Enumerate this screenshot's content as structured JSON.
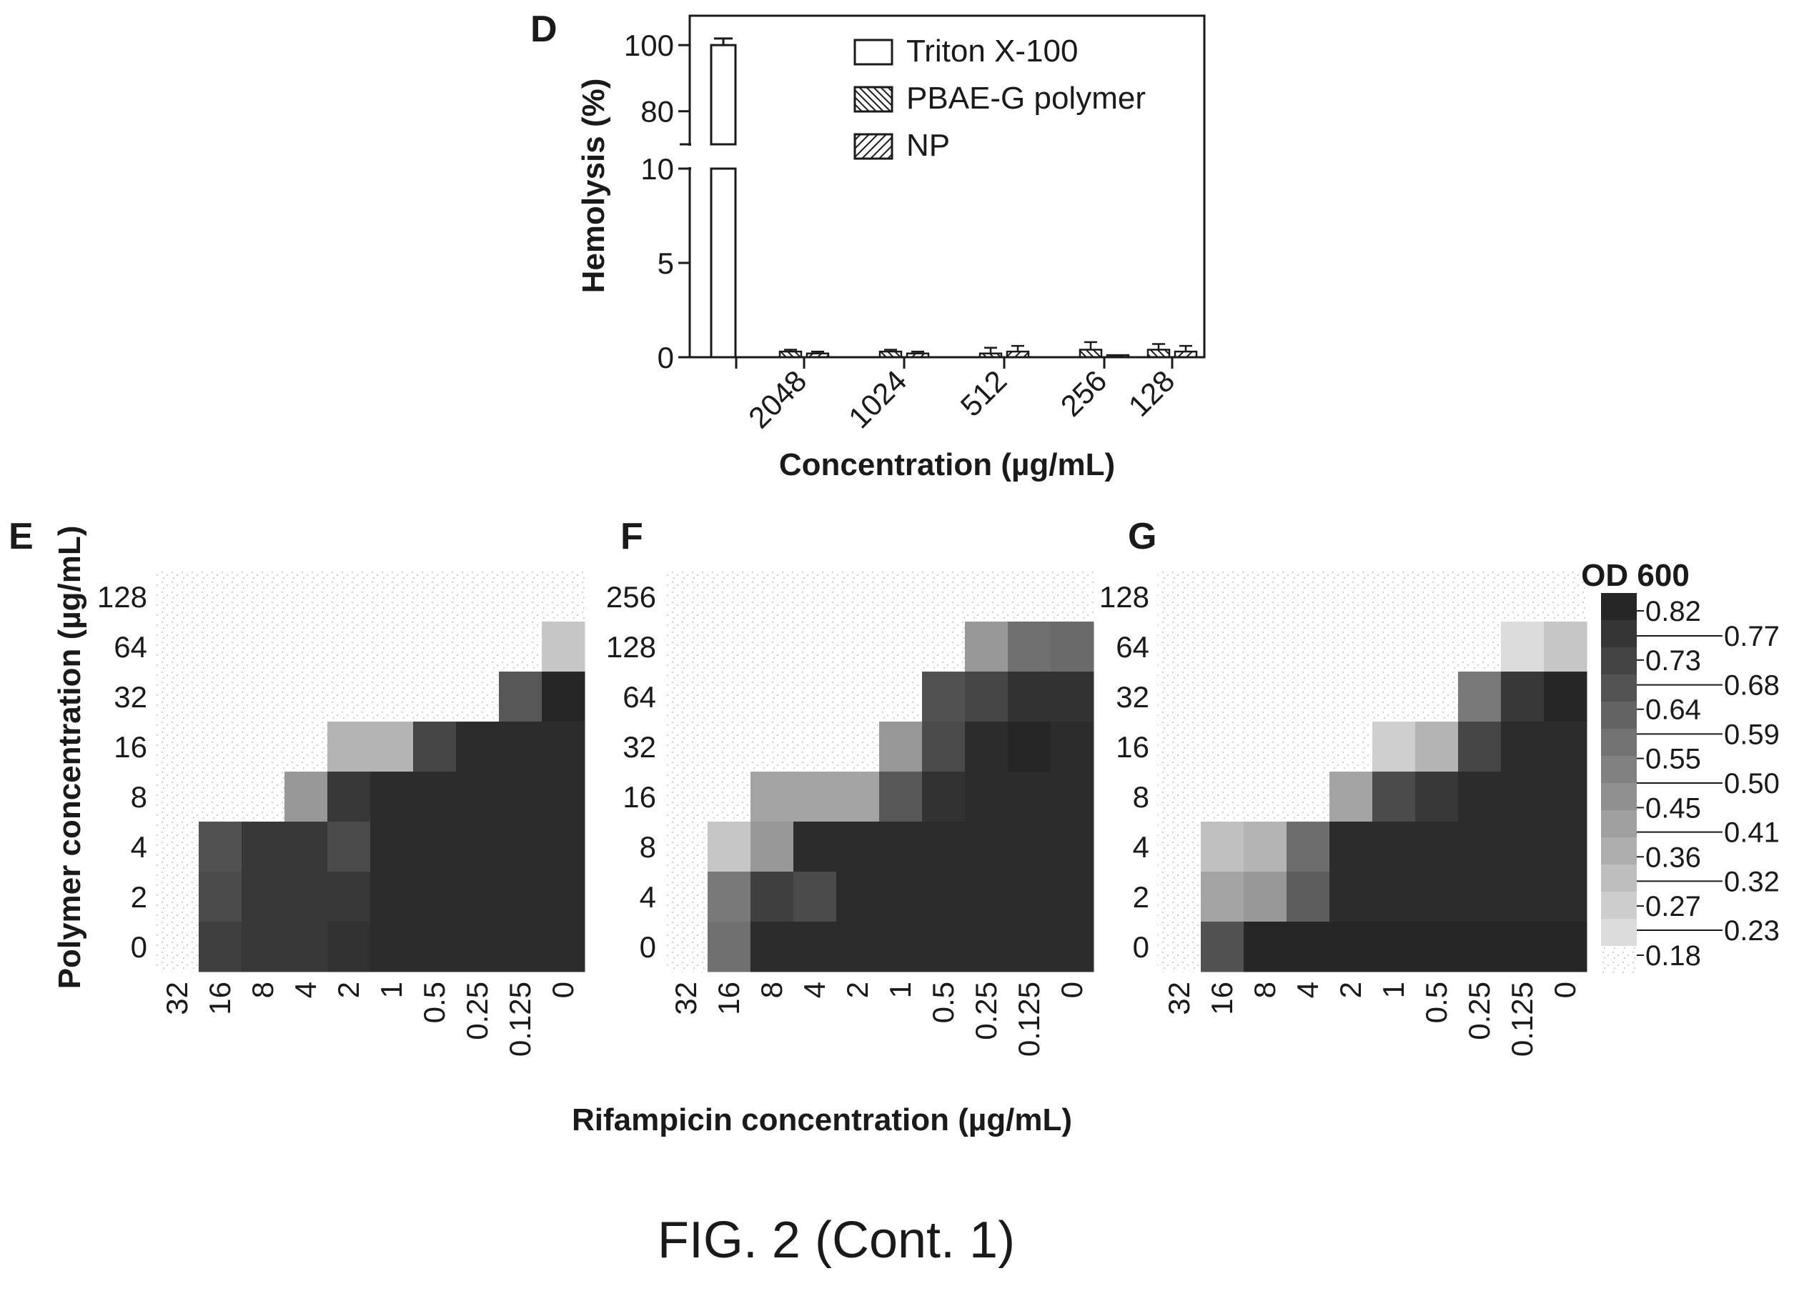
{
  "figure_caption": "FIG. 2 (Cont. 1)",
  "chart_data": [
    {
      "panel": "D",
      "type": "bar",
      "ylabel": "Hemolysis (%)",
      "xlabel": "Concentration (µg/mL)",
      "y_axis": {
        "broken": true,
        "lower_range": [
          0,
          10
        ],
        "lower_ticks": [
          0,
          5,
          10
        ],
        "upper_range": [
          70,
          105
        ],
        "upper_ticks": [
          80,
          100
        ]
      },
      "categories": [
        "",
        "2048",
        "1024",
        "512",
        "256",
        "128"
      ],
      "series": [
        {
          "name": "Triton X-100",
          "pattern": "none",
          "values": [
            100,
            null,
            null,
            null,
            null,
            null
          ],
          "errors": [
            2,
            null,
            null,
            null,
            null,
            null
          ]
        },
        {
          "name": "PBAE-G polymer",
          "pattern": "hatch-back",
          "values": [
            null,
            0.3,
            0.3,
            0.2,
            0.4,
            0.4
          ],
          "errors": [
            null,
            0.1,
            0.1,
            0.3,
            0.4,
            0.3
          ]
        },
        {
          "name": "NP",
          "pattern": "hatch-forward",
          "values": [
            null,
            0.2,
            0.2,
            0.3,
            0.05,
            0.3
          ],
          "errors": [
            null,
            0.1,
            0.1,
            0.3,
            0.05,
            0.3
          ]
        }
      ],
      "legend_position": "top-right",
      "grid": false
    },
    {
      "panel": "E",
      "type": "heatmap",
      "ylabel": "Polymer concentration (µg/mL)",
      "xlabel": "Rifampicin concentration (µg/mL)",
      "x_categories": [
        "32",
        "16",
        "8",
        "4",
        "2",
        "1",
        "0.5",
        "0.25",
        "0.125",
        "0"
      ],
      "y_categories": [
        "128",
        "64",
        "32",
        "16",
        "8",
        "4",
        "2",
        "0"
      ],
      "values": [
        [
          0.18,
          0.18,
          0.18,
          0.18,
          0.18,
          0.18,
          0.18,
          0.18,
          0.18,
          0.18
        ],
        [
          0.18,
          0.18,
          0.18,
          0.18,
          0.18,
          0.18,
          0.18,
          0.18,
          0.18,
          0.3
        ],
        [
          0.18,
          0.18,
          0.18,
          0.18,
          0.18,
          0.18,
          0.18,
          0.18,
          0.66,
          0.82
        ],
        [
          0.18,
          0.18,
          0.18,
          0.18,
          0.36,
          0.36,
          0.72,
          0.8,
          0.8,
          0.8
        ],
        [
          0.18,
          0.18,
          0.18,
          0.45,
          0.76,
          0.8,
          0.8,
          0.8,
          0.8,
          0.8
        ],
        [
          0.18,
          0.68,
          0.76,
          0.76,
          0.7,
          0.8,
          0.8,
          0.8,
          0.8,
          0.8
        ],
        [
          0.18,
          0.7,
          0.76,
          0.76,
          0.76,
          0.8,
          0.8,
          0.8,
          0.8,
          0.8
        ],
        [
          0.18,
          0.74,
          0.76,
          0.76,
          0.78,
          0.8,
          0.8,
          0.8,
          0.8,
          0.8
        ]
      ]
    },
    {
      "panel": "F",
      "type": "heatmap",
      "ylabel": "",
      "xlabel": "Rifampicin concentration (µg/mL)",
      "x_categories": [
        "32",
        "16",
        "8",
        "4",
        "2",
        "1",
        "0.5",
        "0.25",
        "0.125",
        "0"
      ],
      "y_categories": [
        "256",
        "128",
        "64",
        "32",
        "16",
        "8",
        "4",
        "0"
      ],
      "values": [
        [
          0.18,
          0.18,
          0.18,
          0.18,
          0.18,
          0.18,
          0.18,
          0.18,
          0.18,
          0.18
        ],
        [
          0.18,
          0.18,
          0.18,
          0.18,
          0.18,
          0.18,
          0.18,
          0.45,
          0.58,
          0.6
        ],
        [
          0.18,
          0.18,
          0.18,
          0.18,
          0.18,
          0.18,
          0.68,
          0.72,
          0.78,
          0.78
        ],
        [
          0.18,
          0.18,
          0.18,
          0.18,
          0.18,
          0.45,
          0.7,
          0.8,
          0.82,
          0.8
        ],
        [
          0.18,
          0.18,
          0.41,
          0.41,
          0.41,
          0.66,
          0.78,
          0.8,
          0.8,
          0.8
        ],
        [
          0.18,
          0.3,
          0.45,
          0.8,
          0.8,
          0.8,
          0.8,
          0.8,
          0.8,
          0.8
        ],
        [
          0.18,
          0.55,
          0.74,
          0.7,
          0.8,
          0.8,
          0.8,
          0.8,
          0.8,
          0.8
        ],
        [
          0.18,
          0.58,
          0.8,
          0.8,
          0.8,
          0.8,
          0.8,
          0.8,
          0.8,
          0.8
        ]
      ]
    },
    {
      "panel": "G",
      "type": "heatmap",
      "ylabel": "",
      "xlabel": "Rifampicin concentration (µg/mL)",
      "x_categories": [
        "32",
        "16",
        "8",
        "4",
        "2",
        "1",
        "0.5",
        "0.25",
        "0.125",
        "0"
      ],
      "y_categories": [
        "128",
        "64",
        "32",
        "16",
        "8",
        "4",
        "2",
        "0"
      ],
      "values": [
        [
          0.18,
          0.18,
          0.18,
          0.18,
          0.18,
          0.18,
          0.18,
          0.18,
          0.18,
          0.18
        ],
        [
          0.18,
          0.18,
          0.18,
          0.18,
          0.18,
          0.18,
          0.18,
          0.18,
          0.23,
          0.3
        ],
        [
          0.18,
          0.18,
          0.18,
          0.18,
          0.18,
          0.18,
          0.18,
          0.55,
          0.76,
          0.82
        ],
        [
          0.18,
          0.18,
          0.18,
          0.18,
          0.18,
          0.27,
          0.36,
          0.72,
          0.8,
          0.8
        ],
        [
          0.18,
          0.18,
          0.18,
          0.18,
          0.41,
          0.7,
          0.76,
          0.8,
          0.8,
          0.8
        ],
        [
          0.18,
          0.32,
          0.36,
          0.59,
          0.8,
          0.8,
          0.8,
          0.8,
          0.8,
          0.8
        ],
        [
          0.18,
          0.41,
          0.45,
          0.64,
          0.8,
          0.8,
          0.8,
          0.8,
          0.8,
          0.8
        ],
        [
          0.18,
          0.68,
          0.82,
          0.82,
          0.82,
          0.82,
          0.82,
          0.82,
          0.82,
          0.82
        ]
      ]
    }
  ],
  "colorbar": {
    "title": "OD 600",
    "range": [
      0.18,
      0.82
    ],
    "left_ticks": [
      "0.82",
      "0.73",
      "0.64",
      "0.55",
      "0.45",
      "0.36",
      "0.27",
      "0.18"
    ],
    "right_ticks": [
      "0.77",
      "0.68",
      "0.59",
      "0.50",
      "0.41",
      "0.32",
      "0.23"
    ],
    "colors": {
      "low": "#ebebeb",
      "high": "#262626"
    }
  }
}
